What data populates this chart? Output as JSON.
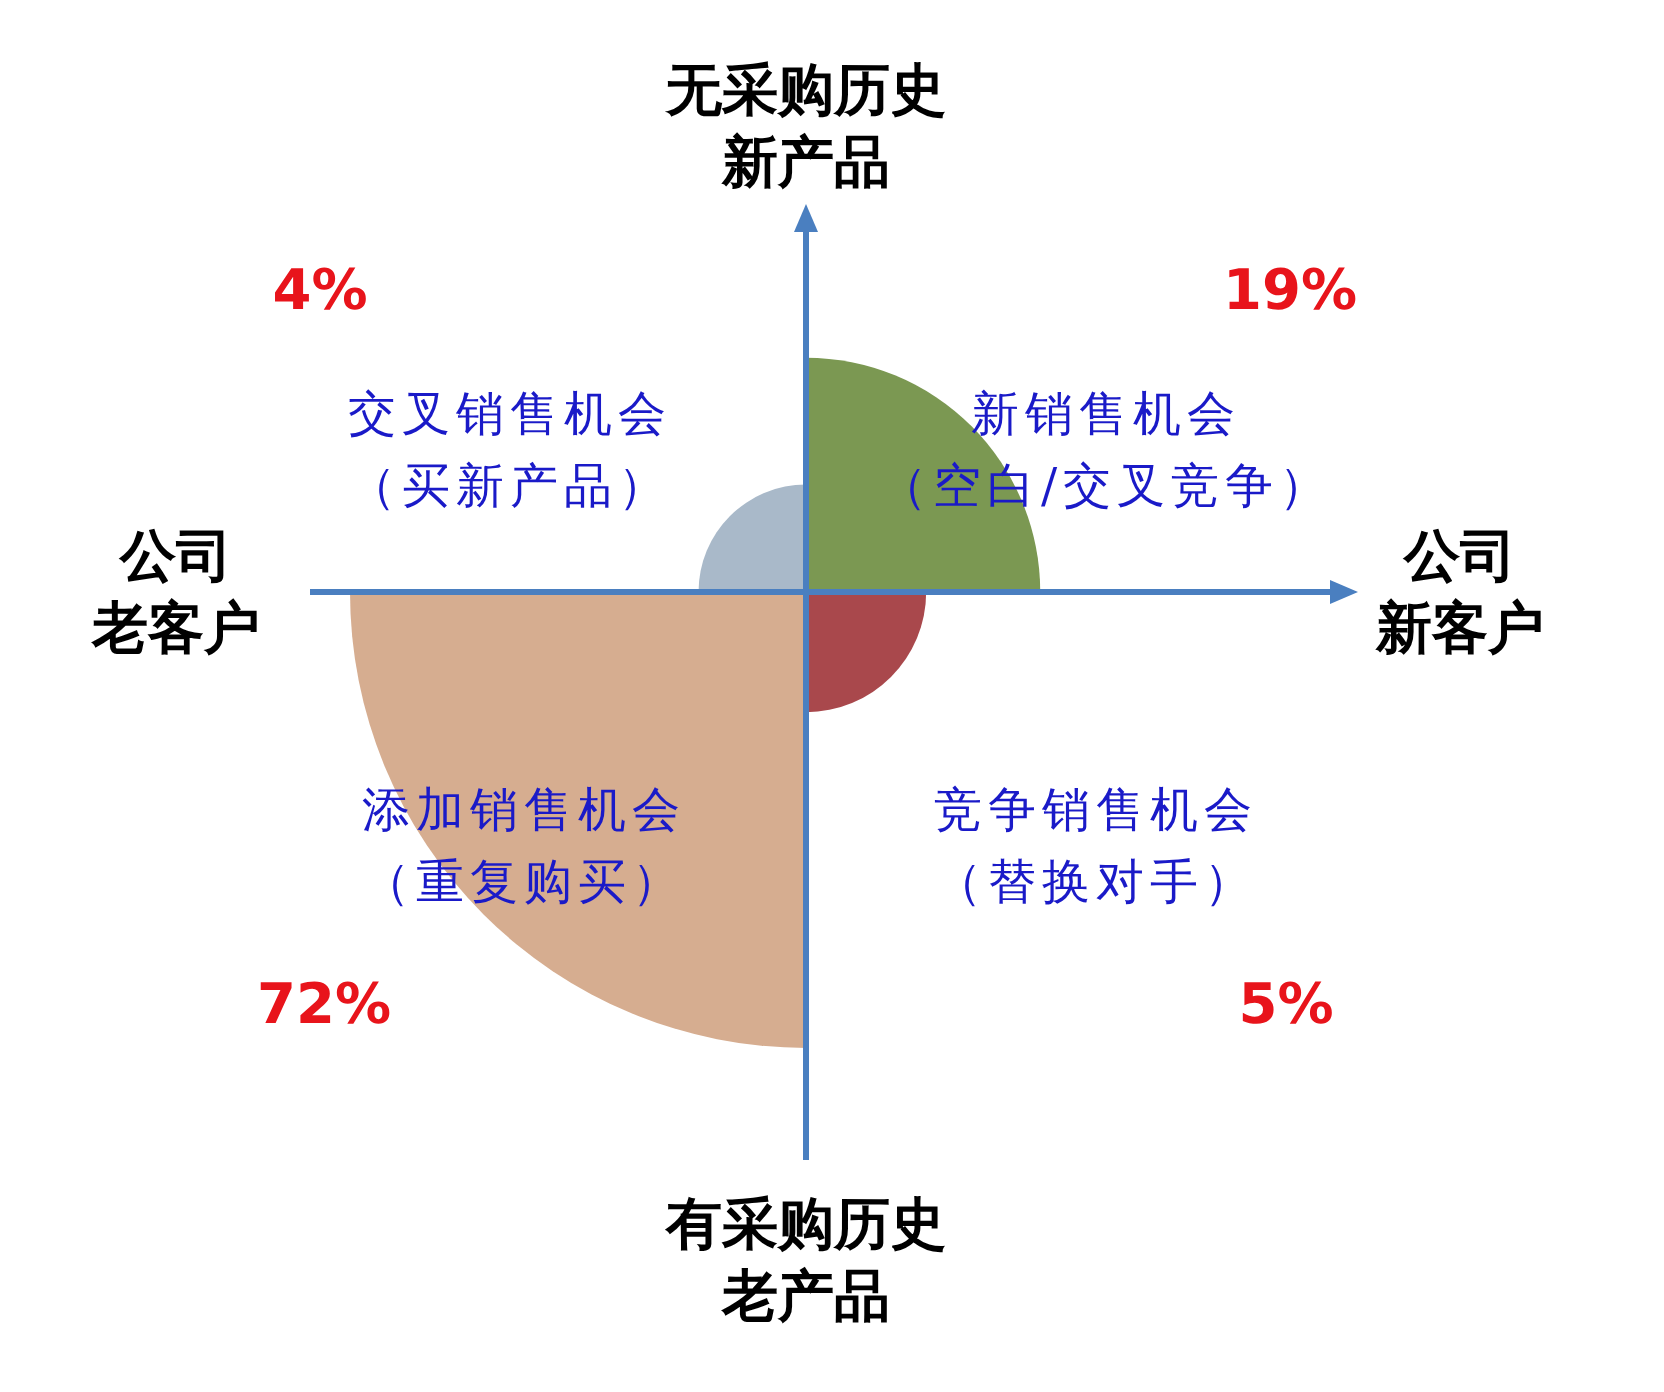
{
  "chart_data": {
    "type": "other",
    "categories": [
      "交叉销售机会",
      "新销售机会",
      "添加销售机会",
      "竞争销售机会"
    ],
    "values": [
      4,
      19,
      72,
      5
    ],
    "value_labels": [
      "4%",
      "19%",
      "72%",
      "5%"
    ],
    "colors": [
      "#a9b9c9",
      "#7b9852",
      "#d6ad90",
      "#a9484c"
    ],
    "annotations": [
      "（买新产品）",
      "（空白/交叉竞争）",
      "（重复购买）",
      "（替换对手）",
      "无采购历史",
      "新产品",
      "公司",
      "老客户",
      "公司",
      "新客户",
      "有采购历史",
      "老产品"
    ]
  }
}
